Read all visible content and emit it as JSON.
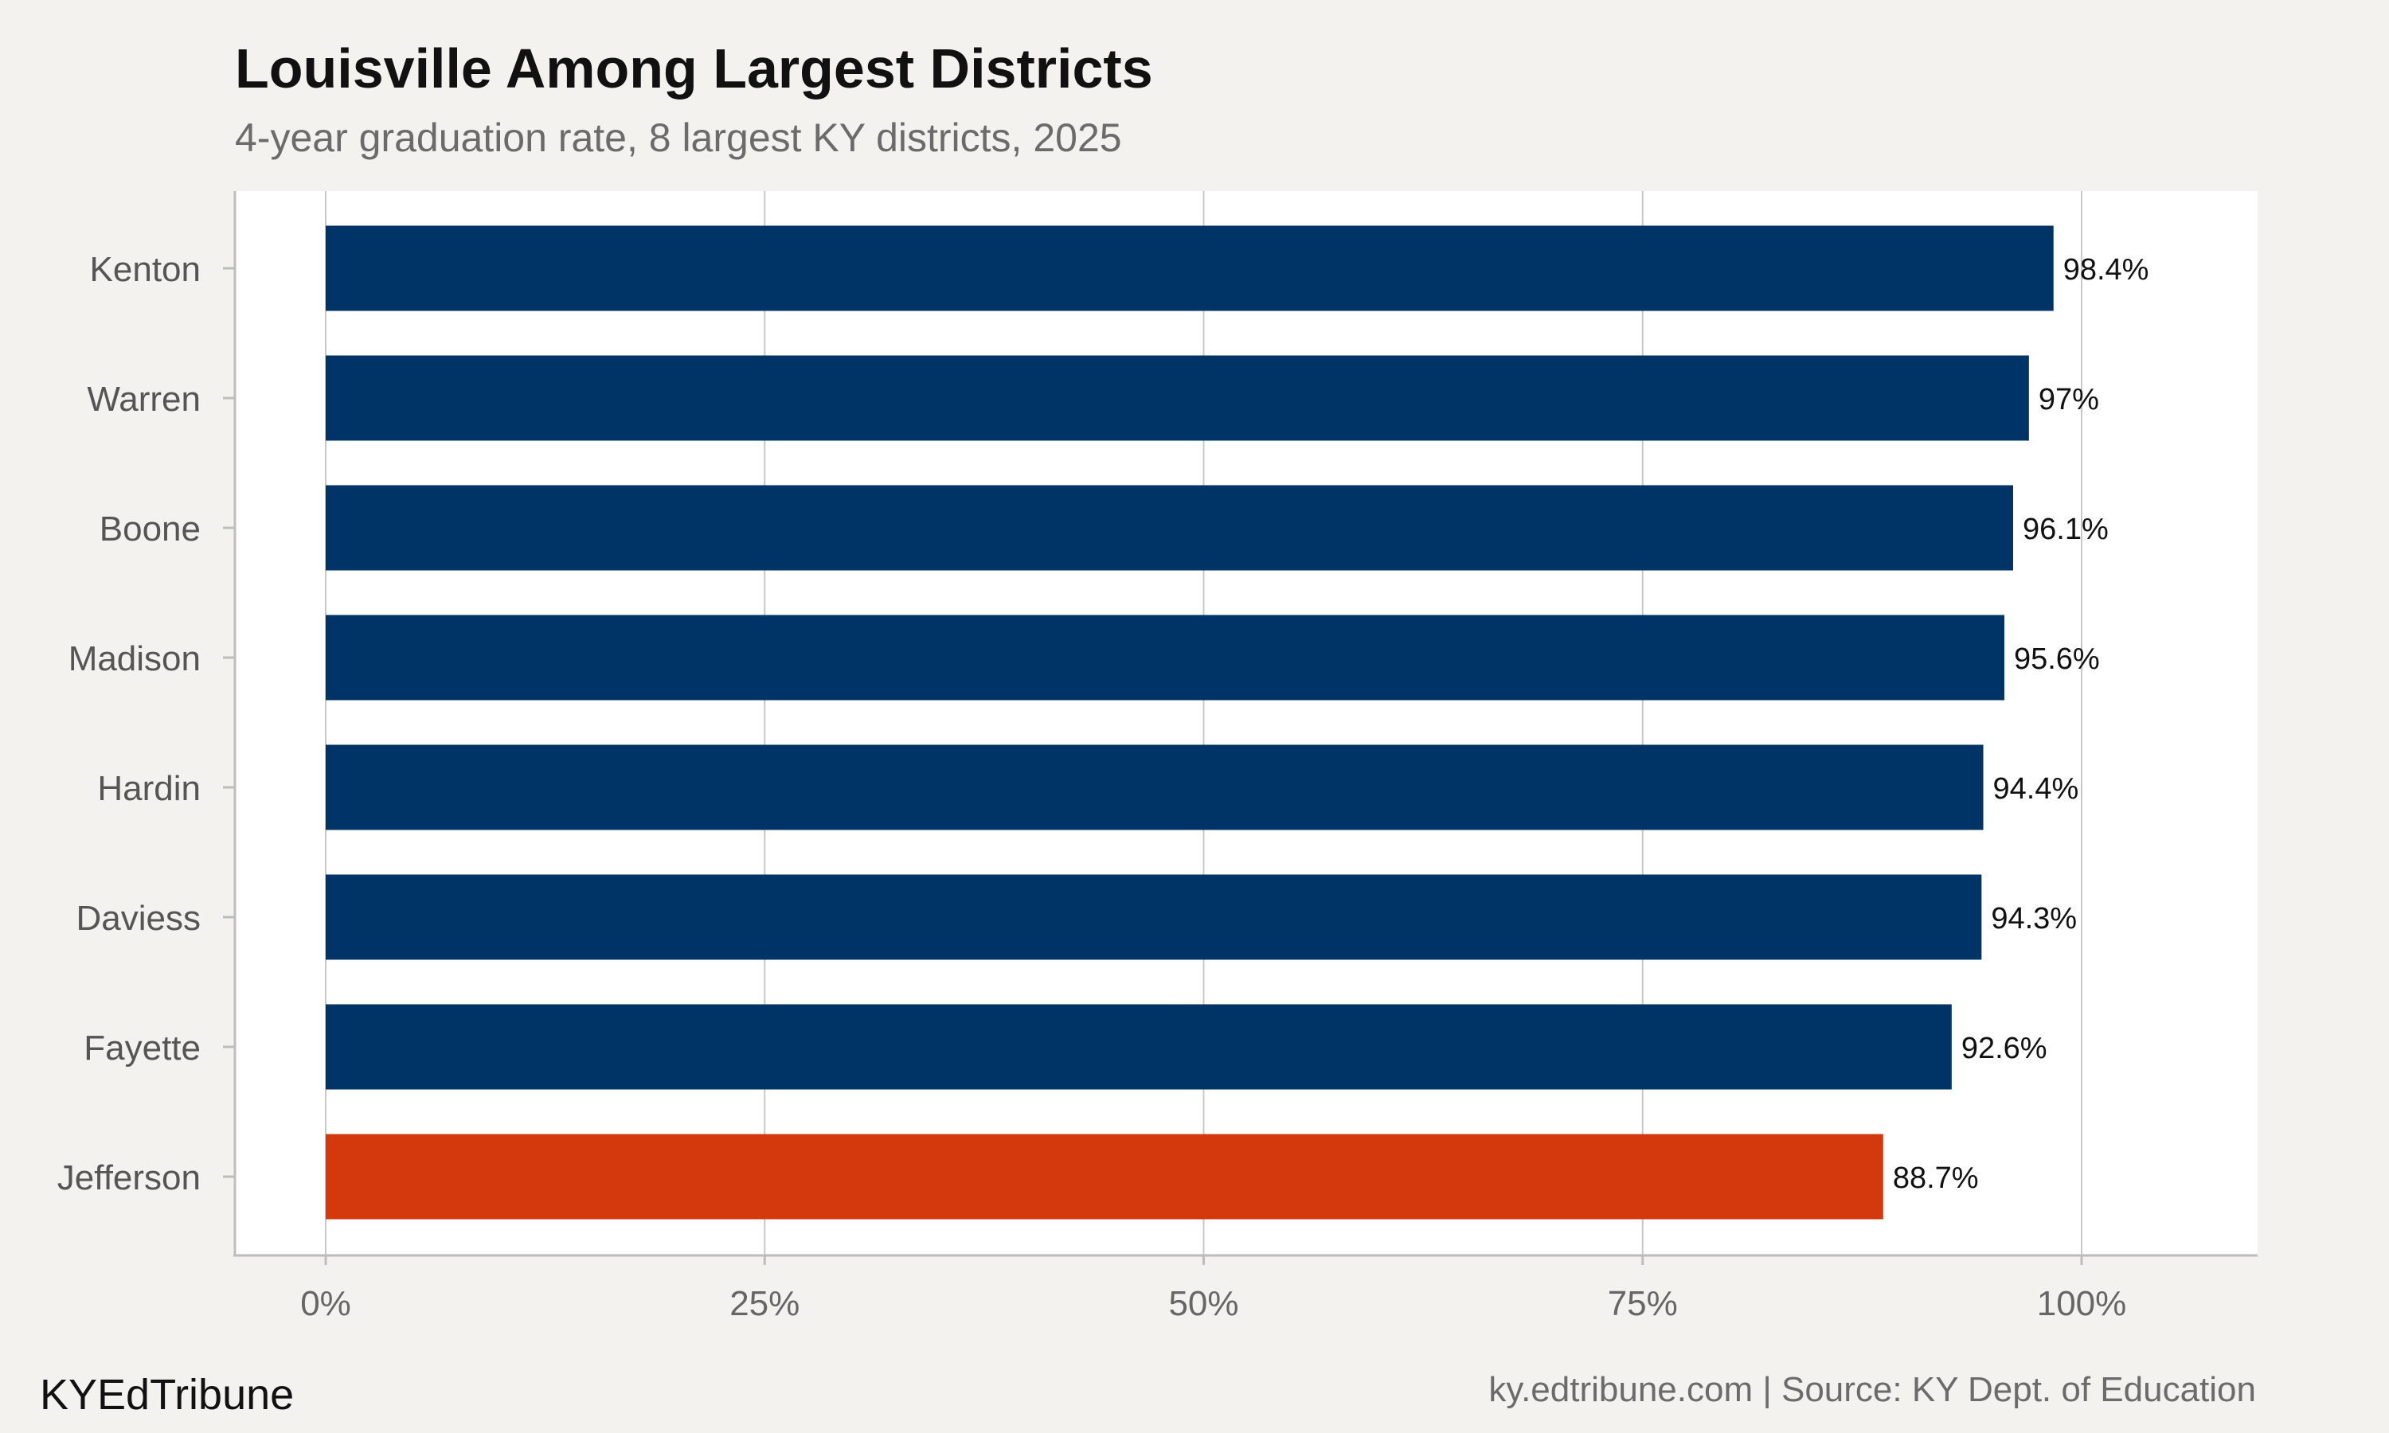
{
  "chart_data": {
    "type": "bar",
    "orientation": "horizontal",
    "title": "Louisville Among Largest Districts",
    "subtitle": "4-year graduation rate, 8 largest KY districts, 2025",
    "categories": [
      "Kenton",
      "Warren",
      "Boone",
      "Madison",
      "Hardin",
      "Daviess",
      "Fayette",
      "Jefferson"
    ],
    "values": [
      98.4,
      97,
      96.1,
      95.6,
      94.4,
      94.3,
      92.6,
      88.7
    ],
    "value_labels": [
      "98.4%",
      "97%",
      "96.1%",
      "95.6%",
      "94.4%",
      "94.3%",
      "92.6%",
      "88.7%"
    ],
    "highlight_category": "Jefferson",
    "xlim": [
      0,
      100
    ],
    "x_ticks": [
      0,
      25,
      50,
      75,
      100
    ],
    "x_tick_labels": [
      "0%",
      "25%",
      "50%",
      "75%",
      "100%"
    ],
    "grid": "vertical-major",
    "legend": "none",
    "colors": {
      "bar": "#003366",
      "highlight": "#d4380d",
      "panel": "#ffffff",
      "background": "#f4f2ee",
      "grid": "#c8c8c8"
    }
  },
  "footer": {
    "brand": "KYEdTribune",
    "source": "ky.edtribune.com | Source: KY Dept. of Education"
  }
}
